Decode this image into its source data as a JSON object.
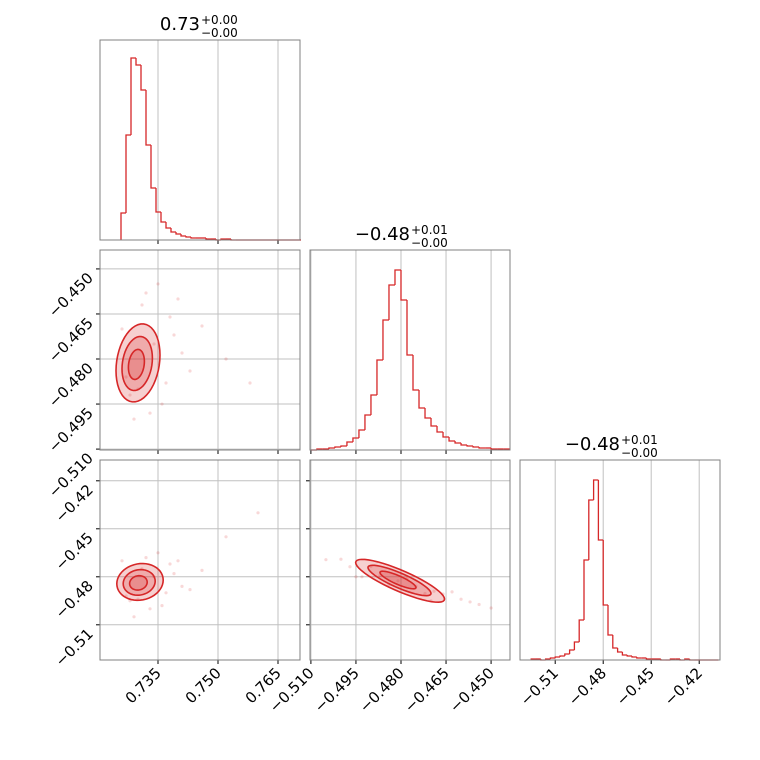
{
  "chart_data": {
    "type": "corner",
    "color": "#d62728",
    "grid": true,
    "hist_ylim": [
      0,
      200
    ],
    "parameters": [
      {
        "lim": [
          0.7205,
          0.7705
        ],
        "ticks": [
          0.735,
          {
            "value": 0.75,
            "label": "0.750"
          },
          0.765
        ],
        "title": {
          "value": "0.73",
          "upper": "+0.00",
          "lower": "−0.00"
        },
        "bins": [
          0.72575,
          0.727,
          0.72825,
          0.7295,
          0.73075,
          0.732,
          0.73325,
          0.7345,
          0.73575,
          0.737,
          0.73825,
          0.7395,
          0.74075,
          0.742,
          0.74325,
          0.7445,
          0.74575,
          0.747,
          0.74825,
          0.7495,
          0.75075,
          0.752,
          0.75325,
          0.7545,
          0.75575,
          0.757,
          0.75825,
          0.7595,
          0.76075,
          0.762,
          0.76325,
          0.7645,
          0.76575,
          0.767,
          0.76825,
          0.7695,
          0.77075
        ],
        "counts": [
          27,
          105,
          182,
          175,
          150,
          95,
          52,
          28,
          18,
          12,
          8,
          6,
          4,
          3,
          2,
          2,
          2,
          1,
          1,
          0,
          1,
          1,
          0,
          0,
          0,
          0,
          0,
          0,
          0,
          0,
          0,
          0,
          0,
          0,
          0,
          0
        ]
      },
      {
        "lim": [
          -0.5103,
          -0.4437
        ],
        "ticks": [
          {
            "value": -0.51,
            "label": "−0.510"
          },
          {
            "value": -0.495,
            "label": "−0.495"
          },
          {
            "value": -0.48,
            "label": "−0.480"
          },
          {
            "value": -0.465,
            "label": "−0.465"
          },
          {
            "value": -0.45,
            "label": "−0.450"
          }
        ],
        "title": {
          "value": "−0.48",
          "upper": "+0.01",
          "lower": "−0.00"
        },
        "bins": [
          -0.51,
          -0.508,
          -0.506,
          -0.504,
          -0.502,
          -0.5,
          -0.498,
          -0.496,
          -0.494,
          -0.492,
          -0.49,
          -0.488,
          -0.486,
          -0.484,
          -0.482,
          -0.48,
          -0.478,
          -0.476,
          -0.474,
          -0.472,
          -0.47,
          -0.468,
          -0.466,
          -0.464,
          -0.462,
          -0.46,
          -0.458,
          -0.456,
          -0.454,
          -0.452,
          -0.45,
          -0.448,
          -0.446,
          -0.444
        ],
        "counts": [
          0,
          1,
          1,
          2,
          3,
          4,
          8,
          12,
          20,
          35,
          55,
          90,
          130,
          165,
          180,
          150,
          95,
          60,
          42,
          32,
          24,
          18,
          13,
          9,
          7,
          5,
          4,
          3,
          2,
          2,
          1,
          1,
          1
        ]
      },
      {
        "lim": [
          -0.532,
          -0.407
        ],
        "ticks": [
          {
            "value": -0.51,
            "label": "−0.51"
          },
          {
            "value": -0.48,
            "label": "−0.48"
          },
          {
            "value": -0.45,
            "label": "−0.45"
          },
          {
            "value": -0.42,
            "label": "−0.42"
          }
        ],
        "title": {
          "value": "−0.48",
          "upper": "+0.01",
          "lower": "−0.00"
        },
        "bins": [
          -0.525,
          -0.522,
          -0.519,
          -0.516,
          -0.513,
          -0.51,
          -0.507,
          -0.504,
          -0.501,
          -0.498,
          -0.495,
          -0.492,
          -0.489,
          -0.486,
          -0.483,
          -0.48,
          -0.477,
          -0.474,
          -0.471,
          -0.468,
          -0.465,
          -0.462,
          -0.459,
          -0.456,
          -0.453,
          -0.45,
          -0.447,
          -0.444,
          -0.441,
          -0.438,
          -0.435,
          -0.432,
          -0.429,
          -0.426,
          -0.423,
          -0.42,
          -0.417,
          -0.414,
          -0.411,
          -0.408
        ],
        "counts": [
          1,
          1,
          0,
          1,
          2,
          3,
          4,
          6,
          10,
          18,
          40,
          100,
          160,
          180,
          120,
          55,
          25,
          12,
          8,
          5,
          4,
          3,
          2,
          2,
          1,
          1,
          1,
          0,
          0,
          1,
          1,
          0,
          1,
          0,
          0,
          0,
          0,
          0,
          0
        ]
      }
    ],
    "pairs": [
      {
        "x": 0,
        "y": 1,
        "points": {
          "x": [
            0.726,
            0.728,
            0.731,
            0.733,
            0.735,
            0.737,
            0.739,
            0.741,
            0.729,
            0.732,
            0.736,
            0.738,
            0.727,
            0.734,
            0.743,
            0.746,
            0.73,
            0.74,
            0.752,
            0.758
          ],
          "y": [
            -0.47,
            -0.492,
            -0.462,
            -0.498,
            -0.455,
            -0.488,
            -0.472,
            -0.478,
            -0.5,
            -0.458,
            -0.495,
            -0.466,
            -0.486,
            -0.475,
            -0.484,
            -0.469,
            -0.49,
            -0.46,
            -0.48,
            -0.488
          ]
        },
        "contours": [
          {
            "x": 0.73,
            "y": -0.4813,
            "rx": 0.0055,
            "ry": 0.013,
            "rho": 0.2
          },
          {
            "x": 0.7298,
            "y": -0.4815,
            "rx": 0.0038,
            "ry": 0.009,
            "rho": 0.2
          },
          {
            "x": 0.7296,
            "y": -0.4818,
            "rx": 0.002,
            "ry": 0.005,
            "rho": 0.2
          }
        ]
      },
      {
        "x": 0,
        "y": 2,
        "points": {
          "x": [
            0.726,
            0.728,
            0.731,
            0.733,
            0.735,
            0.737,
            0.739,
            0.741,
            0.729,
            0.732,
            0.736,
            0.738,
            0.727,
            0.734,
            0.743,
            0.746,
            0.73,
            0.74,
            0.752,
            0.76
          ],
          "y": [
            -0.47,
            -0.495,
            -0.475,
            -0.5,
            -0.465,
            -0.49,
            -0.478,
            -0.486,
            -0.505,
            -0.468,
            -0.498,
            -0.472,
            -0.492,
            -0.48,
            -0.488,
            -0.476,
            -0.494,
            -0.47,
            -0.455,
            -0.44
          ]
        },
        "contours": [
          {
            "x": 0.7305,
            "y": -0.4832,
            "rx": 0.0058,
            "ry": 0.0115,
            "rho": 0.1
          },
          {
            "x": 0.7303,
            "y": -0.4835,
            "rx": 0.004,
            "ry": 0.008,
            "rho": 0.1
          },
          {
            "x": 0.7301,
            "y": -0.4838,
            "rx": 0.0022,
            "ry": 0.0045,
            "rho": 0.1
          }
        ]
      },
      {
        "x": 1,
        "y": 2,
        "points": {
          "x": [
            -0.505,
            -0.5,
            -0.497,
            -0.493,
            -0.49,
            -0.487,
            -0.484,
            -0.481,
            -0.478,
            -0.475,
            -0.472,
            -0.469,
            -0.466,
            -0.463,
            -0.46,
            -0.457,
            -0.454,
            -0.45,
            -0.495,
            -0.47
          ],
          "y": [
            -0.4693,
            -0.469,
            -0.4737,
            -0.48,
            -0.4735,
            -0.4792,
            -0.485,
            -0.4825,
            -0.4811,
            -0.4858,
            -0.4904,
            -0.489,
            -0.4907,
            -0.4894,
            -0.494,
            -0.4957,
            -0.4973,
            -0.4995,
            -0.48,
            -0.495
          ]
        },
        "contours": [
          {
            "x": -0.4803,
            "y": -0.4825,
            "rx": 0.0148,
            "ry": 0.0134,
            "rho": -0.85
          },
          {
            "x": -0.4805,
            "y": -0.4823,
            "rx": 0.0105,
            "ry": 0.0095,
            "rho": -0.85
          },
          {
            "x": -0.481,
            "y": -0.482,
            "rx": 0.006,
            "ry": 0.0055,
            "rho": -0.85
          }
        ]
      }
    ]
  }
}
